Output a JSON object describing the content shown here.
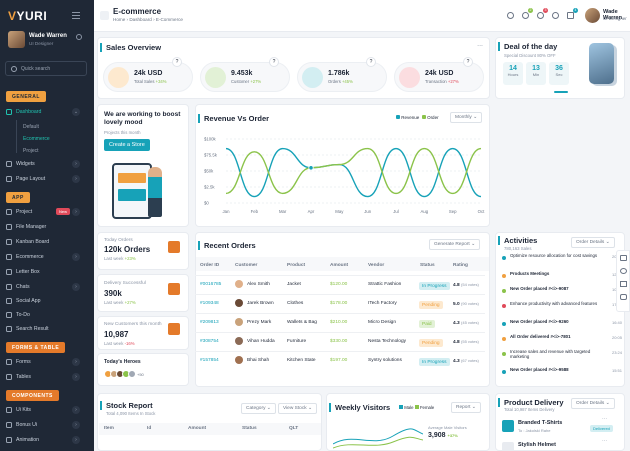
{
  "sidebar": {
    "logo": "YURI",
    "logo_mark": "V",
    "user_name": "Wade Warren",
    "user_role": "UI Designer",
    "search_placeholder": "Quick search",
    "section_general": "GENERAL",
    "dashboard": "Dashboard",
    "dashboard_subs": [
      "Default",
      "Ecommerce",
      "Project"
    ],
    "widgets": "Widgets",
    "page_layout": "Page Layout",
    "section_app": "APP",
    "app_items": [
      "Project",
      "File Manager",
      "Kanban Board",
      "Ecommerce",
      "Letter Box",
      "Chats",
      "Social App",
      "To-Do",
      "Search Result"
    ],
    "project_badge": "New",
    "section_forms": "FORMS & TABLE",
    "forms_items": [
      "Forms",
      "Tables"
    ],
    "section_components": "COMPONENTS",
    "comp_items": [
      "Ui Kits",
      "Bonus Ui",
      "Animation"
    ]
  },
  "header": {
    "title": "E-commerce",
    "breadcrumb": "Home › Dashboard › E-Commerce",
    "badges": [
      "2",
      "3",
      "4"
    ],
    "user_name": "Wade Warren",
    "user_role": "UI Designer"
  },
  "sales_overview": {
    "title": "Sales Overview",
    "more": "...",
    "stats": [
      {
        "value": "24k USD",
        "label": "Total Sales",
        "change": "+34%",
        "q": "?"
      },
      {
        "value": "9.453k",
        "label": "Customer",
        "change": "+27%",
        "q": "?"
      },
      {
        "value": "1.786k",
        "label": "Orders",
        "change": "+45%",
        "q": "?"
      },
      {
        "value": "24k USD",
        "label": "Transaction",
        "change": "+27%",
        "q": "?"
      }
    ]
  },
  "deal": {
    "title": "Deal of the day",
    "subtitle": "Special Discount 80% OFF",
    "countdown": [
      {
        "num": "14",
        "unit": "Hours"
      },
      {
        "num": "13",
        "unit": "Min"
      },
      {
        "num": "36",
        "unit": "Sec"
      }
    ]
  },
  "boost": {
    "title": "We are working to boost lovely mood",
    "subtitle": "Projects this month",
    "button": "Create a Store"
  },
  "revenue_chart": {
    "title": "Revenue Vs Order",
    "legend": [
      "Revenue",
      "Order"
    ],
    "period": "Monthly"
  },
  "chart_data": {
    "type": "line",
    "categories": [
      "Jan",
      "Feb",
      "Mar",
      "Apr",
      "May",
      "Jun",
      "Jul",
      "Aug",
      "Sep",
      "Oct"
    ],
    "y_tick_labels": [
      "$100k",
      "$75.5k",
      "$50k",
      "$2.5k",
      "$0"
    ],
    "series": [
      {
        "name": "Revenue",
        "color": "#17a2b8",
        "values": [
          85,
          10,
          85,
          55,
          60,
          10,
          85,
          10,
          85,
          10
        ]
      },
      {
        "name": "Order",
        "color": "#8bc34a",
        "values": [
          15,
          80,
          15,
          55,
          60,
          85,
          15,
          85,
          15,
          85
        ]
      }
    ],
    "ylim": [
      0,
      100
    ],
    "grid": true,
    "legend_position": "top-right"
  },
  "today_orders": {
    "label": "Today Orders",
    "value": "120k Orders",
    "sub": "Last week",
    "change": "+23%"
  },
  "delivery": {
    "label": "Delivery Successful",
    "value": "390k",
    "sub": "Last week",
    "change": "+27%"
  },
  "new_customers": {
    "label": "New Customers this month",
    "value": "10,987",
    "sub": "Last week",
    "change": "-16%"
  },
  "heroes": {
    "label": "Today's Heroes",
    "more": "+50"
  },
  "recent_orders": {
    "title": "Recent Orders",
    "report_btn": "Generate Report",
    "columns": [
      "Order ID",
      "Customer",
      "Product",
      "Amount",
      "Vendor",
      "Status",
      "Rating"
    ],
    "rows": [
      {
        "id": "#0016785",
        "customer": "Alex Smith",
        "product": "Jacket",
        "amount": "$120.00",
        "vendor": "Strattic Fashion",
        "status": "In Progress",
        "rating": "4.8",
        "votes": "(54 votes)"
      },
      {
        "id": "#109348",
        "customer": "Jarek Brown",
        "product": "Clothes",
        "amount": "$178.00",
        "vendor": "ITech Factory",
        "status": "Pending",
        "rating": "5.0",
        "votes": "(90 votes)"
      },
      {
        "id": "#209813",
        "customer": "Prezy Mark",
        "product": "Wallets & Bag",
        "amount": "$210.00",
        "vendor": "Micro Design",
        "status": "Paid",
        "rating": "4.3",
        "votes": "(45 votes)"
      },
      {
        "id": "#308754",
        "customer": "Vihan Hudda",
        "product": "Furniture",
        "amount": "$330.00",
        "vendor": "Nesta Technology",
        "status": "Pending",
        "rating": "4.8",
        "votes": "(55 votes)"
      },
      {
        "id": "#157854",
        "customer": "Bhai Shah",
        "product": "Kitchen State",
        "amount": "$197.00",
        "vendor": "Syntry solutions",
        "status": "In Progress",
        "rating": "4.3",
        "votes": "(67 votes)"
      }
    ]
  },
  "activities": {
    "title": "Activities",
    "subtitle": "780,163 Sales",
    "btn": "Order Details",
    "items": [
      {
        "text": "Optimize resource allocation for cost savings",
        "time": "20:33",
        "color": "#17a2b8"
      },
      {
        "text": "Products Meetings",
        "time": "12:04",
        "color": "#f0a040"
      },
      {
        "text": "New Order placed #<i>-9087",
        "time": "10:59",
        "color": "#8bc34a"
      },
      {
        "text": "Enhance productivity with advanced features",
        "time": "17:54",
        "color": "#e04a5a"
      },
      {
        "text": "New Order placed #<i>-9260",
        "time": "16:40",
        "color": "#17a2b8"
      },
      {
        "text": "All Order delivered #<i>-7801",
        "time": "20:05",
        "color": "#f0a040"
      },
      {
        "text": "Increase sales and revenue with targeted marketing",
        "time": "23:24",
        "color": "#8bc34a"
      },
      {
        "text": "New Order placed #<i>-9588",
        "time": "15:51",
        "color": "#17a2b8"
      }
    ]
  },
  "stock": {
    "title": "Stock Report",
    "subtitle": "Total 4,090 Items In Stock",
    "category": "Category",
    "view": "View Stock",
    "columns": [
      "Item",
      "Id",
      "Amount",
      "Status",
      "QLT"
    ]
  },
  "weekly": {
    "title": "Weekly Visitors",
    "legend": [
      "Male",
      "Female"
    ],
    "report": "Report",
    "avg_label": "Average Male Visitors",
    "avg_value": "3,908",
    "avg_change": "+37%"
  },
  "delivery_card": {
    "title": "Product Delivery",
    "subtitle": "Total 10,987 Items Delivery",
    "btn": "Order Details",
    "items": [
      {
        "name": "Branded T-Shirts",
        "sub": "To : Jakolski Rahe",
        "status": "Delivered"
      },
      {
        "name": "Stylish Helmet",
        "sub": "",
        "status": ""
      }
    ]
  }
}
